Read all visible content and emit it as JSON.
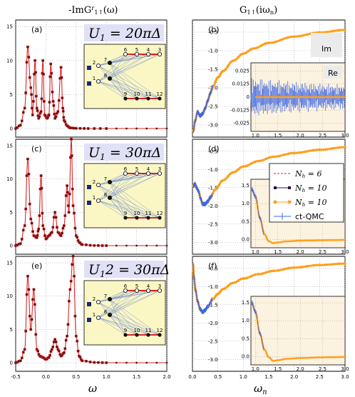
{
  "chart_data": [
    {
      "type": "line",
      "panel_label": "(a)",
      "column_title": "-ImG^r_{1↑}(ω)",
      "xlabel": "ω",
      "annotation": "U_1 = 20πΔ",
      "xlim": [
        -0.5,
        2.0
      ],
      "ylim": [
        0,
        18
      ],
      "xticks": [
        "-0.5",
        "0.0",
        "0.5",
        "1.0",
        "1.5",
        "2.0"
      ],
      "yticks": [
        "0",
        "5",
        "10",
        "15"
      ],
      "series": [
        {
          "x": [
            -0.5,
            -0.42,
            -0.35,
            -0.3,
            -0.25,
            -0.22,
            -0.18,
            -0.15,
            -0.12,
            -0.08,
            -0.05,
            -0.02,
            0.02,
            0.05,
            0.08,
            0.12,
            0.15,
            0.2,
            0.25,
            0.28,
            0.3,
            0.35,
            0.4,
            0.5,
            0.7,
            1.0,
            1.5,
            2.0
          ],
          "y": [
            0,
            0.5,
            3,
            12,
            6,
            2,
            10,
            3,
            1.5,
            2.5,
            10,
            2,
            1.5,
            2,
            9.5,
            4,
            1.5,
            2.5,
            9,
            3,
            1.2,
            0.4,
            0.1,
            0.03,
            0,
            0,
            0,
            0
          ]
        }
      ]
    },
    {
      "type": "line",
      "panel_label": "(b)",
      "column_title": "G_{1↑}(iω_n)",
      "xlabel": "ω_n",
      "annotation": "Im",
      "xlim": [
        0,
        3.0
      ],
      "ylim": [
        -3.25,
        -0.25
      ],
      "xticks": [
        "0.0",
        "0.5",
        "1.0",
        "1.5",
        "2.0",
        "2.5",
        "3.0"
      ],
      "yticks": [
        "-0.5",
        "-1.0",
        "-1.5",
        "-2.0",
        "-2.5",
        "-3.0"
      ],
      "series": [
        {
          "x": [
            0.02,
            0.05,
            0.1,
            0.15,
            0.2,
            0.25,
            0.3,
            0.35,
            0.4,
            0.5,
            0.6,
            0.8,
            1.0,
            1.2,
            1.5,
            2.0,
            2.5,
            3.0
          ],
          "y": [
            -3.15,
            -2.9,
            -2.65,
            -2.75,
            -2.7,
            -2.55,
            -2.35,
            -2.15,
            -1.97,
            -1.72,
            -1.55,
            -1.27,
            -1.08,
            -0.94,
            -0.79,
            -0.62,
            -0.51,
            -0.44
          ]
        }
      ],
      "inset": {
        "annotation": "Re",
        "yticks": [
          "0.025",
          "0.0125",
          "0",
          "-0.0125",
          "-0.025"
        ],
        "xticks": [
          "1.0",
          "1.5",
          "2.0",
          "2.5",
          "3.0"
        ]
      }
    },
    {
      "type": "line",
      "panel_label": "(c)",
      "annotation": "U_1 = 30πΔ",
      "xlim": [
        -0.5,
        2.0
      ],
      "ylim": [
        0,
        18
      ],
      "xticks": [
        "-0.5",
        "0.0",
        "0.5",
        "1.0",
        "1.5",
        "2.0"
      ],
      "yticks": [
        "0",
        "5",
        "10",
        "15"
      ],
      "series": [
        {
          "x": [
            -0.5,
            -0.42,
            -0.35,
            -0.3,
            -0.25,
            -0.2,
            -0.15,
            -0.12,
            -0.08,
            -0.05,
            0.0,
            0.05,
            0.1,
            0.15,
            0.2,
            0.25,
            0.3,
            0.35,
            0.38,
            0.42,
            0.45,
            0.5,
            0.55,
            0.6,
            0.8,
            1.0,
            1.5,
            2.0
          ],
          "y": [
            0,
            0.3,
            3,
            13,
            4,
            1.5,
            1.2,
            2.5,
            10.5,
            3,
            1,
            1.5,
            2,
            5,
            2,
            1.5,
            3,
            9,
            5,
            16,
            6,
            1.5,
            0.5,
            0.15,
            0.02,
            0,
            0,
            0
          ]
        }
      ]
    },
    {
      "type": "line",
      "panel_label": "(d)",
      "xlim": [
        0,
        3.0
      ],
      "ylim": [
        -3.25,
        -0.25
      ],
      "xticks": [
        "0.0",
        "0.5",
        "1.0",
        "1.5",
        "2.0",
        "2.5",
        "3.0"
      ],
      "yticks": [
        "-0.5",
        "-1.0",
        "-1.5",
        "-2.0",
        "-2.5",
        "-3.0"
      ],
      "series": [
        {
          "x": [
            0.02,
            0.05,
            0.08,
            0.12,
            0.16,
            0.2,
            0.25,
            0.3,
            0.35,
            0.45,
            0.6,
            0.8,
            1.0,
            1.3,
            1.6,
            2.0,
            2.5,
            3.0
          ],
          "y": [
            -1.45,
            -1.4,
            -1.5,
            -1.6,
            -1.8,
            -1.95,
            -1.95,
            -1.88,
            -1.77,
            -1.55,
            -1.3,
            -1.08,
            -0.92,
            -0.77,
            -0.65,
            -0.55,
            -0.46,
            -0.39
          ]
        }
      ],
      "legend": [
        {
          "label": "N_h = 6",
          "color": "#d62728",
          "style": "dashed"
        },
        {
          "label": "N_h = 10",
          "color": "#2a0a50",
          "style": "square-marker"
        },
        {
          "label": "N_h = 10",
          "color": "#ff9f1c",
          "style": "dot-marker"
        },
        {
          "label": "ct-QMC",
          "color": "#4169e1",
          "style": "errorbar"
        }
      ],
      "inset": {
        "yticks": [
          "1.5",
          "1.0",
          "0.5",
          "0.0"
        ],
        "xticks": [
          "1.0",
          "1.5",
          "2.0",
          "2.5",
          "3.0"
        ]
      }
    },
    {
      "type": "line",
      "panel_label": "(e)",
      "annotation": "U_12 = 30πΔ",
      "xlim": [
        -0.5,
        2.0
      ],
      "ylim": [
        0,
        18
      ],
      "xticks": [
        "-0.5",
        "0.0",
        "0.5",
        "1.0",
        "1.5",
        "2.0"
      ],
      "yticks": [
        "0",
        "5",
        "10",
        "15"
      ],
      "series": [
        {
          "x": [
            -0.5,
            -0.42,
            -0.35,
            -0.3,
            -0.25,
            -0.2,
            -0.15,
            -0.1,
            -0.05,
            0.0,
            0.05,
            0.1,
            0.15,
            0.2,
            0.25,
            0.3,
            0.35,
            0.4,
            0.45,
            0.5,
            0.55,
            0.6,
            0.8,
            1.0,
            1.5,
            2.0
          ],
          "y": [
            0,
            0.3,
            2,
            13,
            5,
            11,
            2,
            1,
            0.8,
            0.5,
            0.8,
            2,
            3.5,
            2,
            1,
            1.5,
            4,
            11,
            16,
            4,
            1,
            0.3,
            0.05,
            0,
            0,
            0
          ]
        }
      ]
    },
    {
      "type": "line",
      "panel_label": "(f)",
      "xlim": [
        0,
        3.0
      ],
      "ylim": [
        -3.25,
        -0.25
      ],
      "xticks": [
        "0.0",
        "0.5",
        "1.0",
        "1.5",
        "2.0",
        "2.5",
        "3.0"
      ],
      "yticks": [
        "-0.5",
        "-1.0",
        "-1.5",
        "-2.0",
        "-2.5",
        "-3.0"
      ],
      "series": [
        {
          "x": [
            0.01,
            0.03,
            0.06,
            0.1,
            0.15,
            0.2,
            0.25,
            0.3,
            0.4,
            0.5,
            0.6,
            0.8,
            1.0,
            1.3,
            1.6,
            2.0,
            2.5,
            3.0
          ],
          "y": [
            -0.4,
            -0.75,
            -1.1,
            -1.4,
            -1.62,
            -1.7,
            -1.65,
            -1.55,
            -1.35,
            -1.2,
            -1.07,
            -0.9,
            -0.78,
            -0.66,
            -0.57,
            -0.48,
            -0.41,
            -0.37
          ]
        }
      ],
      "inset": {
        "yticks": [
          "1.5",
          "1.0",
          "0.5",
          "0.0"
        ],
        "xticks": [
          "1.0",
          "1.5",
          "2.0",
          "2.5",
          "3.0"
        ]
      }
    }
  ],
  "diagram": {
    "top_nodes": [
      "6",
      "5",
      "4",
      "3"
    ],
    "bottom_nodes": [
      "9",
      "10",
      "11",
      "12"
    ],
    "side_nodes": [
      "2",
      "7",
      "1",
      "8"
    ]
  },
  "colors": {
    "red_line": "#d62728",
    "orange": "#ff9f1c",
    "navy": "#2a0a50",
    "blue_err": "#4169e1",
    "label_box": "#e0e0f6",
    "inset_fill": "#fcf2e0",
    "diagram_fill": "#fbf7c4"
  }
}
